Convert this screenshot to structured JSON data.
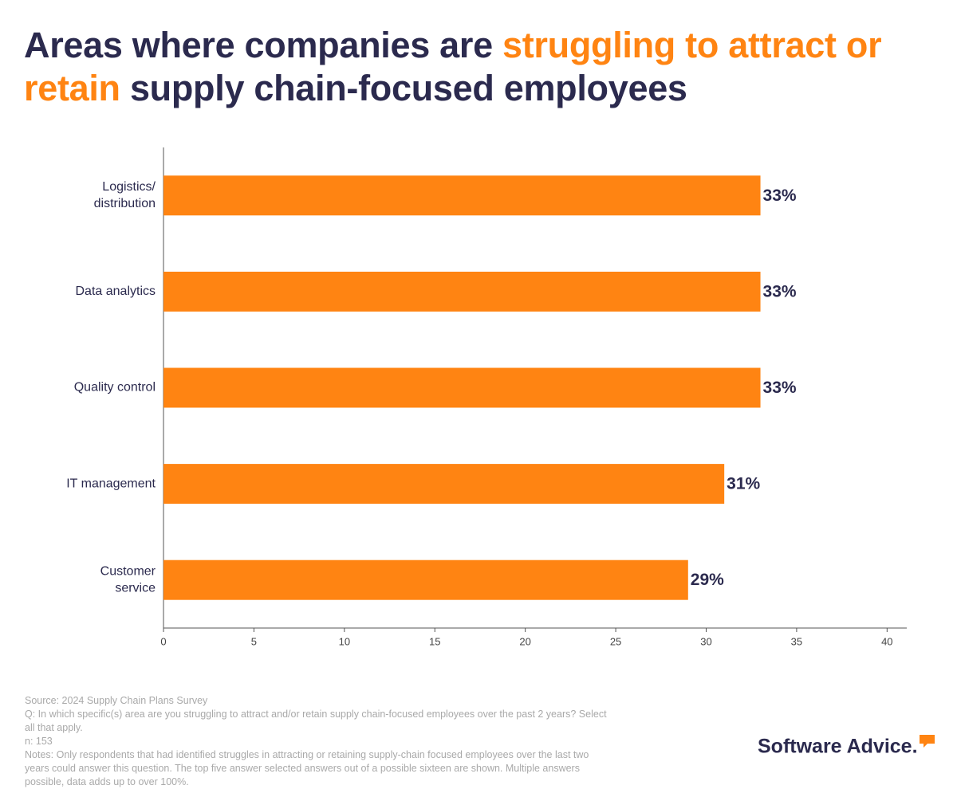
{
  "chart_data": {
    "type": "bar",
    "orientation": "horizontal",
    "title": [
      "Areas where companies are",
      "struggling to attract or retain",
      "supply chain-focused employees"
    ],
    "title_colors": [
      "#2b2a4e",
      "#ff8412",
      "#2b2a4e"
    ],
    "categories": [
      [
        "Logistics/",
        "distribution"
      ],
      [
        "Data analytics"
      ],
      [
        "Quality control"
      ],
      [
        "IT management"
      ],
      [
        "Customer",
        "service"
      ]
    ],
    "values": [
      33,
      33,
      33,
      31,
      29
    ],
    "value_labels": [
      "33%",
      "33%",
      "33%",
      "31%",
      "29%"
    ],
    "color": "#ff8412",
    "xlim": [
      0,
      41
    ],
    "xticks": [
      0,
      5,
      10,
      15,
      20,
      25,
      30,
      35,
      40
    ],
    "grid": false
  },
  "footer": {
    "lines": [
      "Source: 2024 Supply Chain Plans Survey",
      "Q:  In which specific(s) area are you struggling to attract and/or retain supply chain-focused employees over the past 2 years? Select",
      "all that apply.",
      "n: 153",
      "Notes: Only respondents that had identified struggles in attracting or retaining supply-chain focused employees over the last two",
      "years could answer this question. The top five answer selected answers out of a possible sixteen are shown. Multiple answers",
      "possible, data adds up to over 100%."
    ],
    "logo": "Software Advice."
  }
}
